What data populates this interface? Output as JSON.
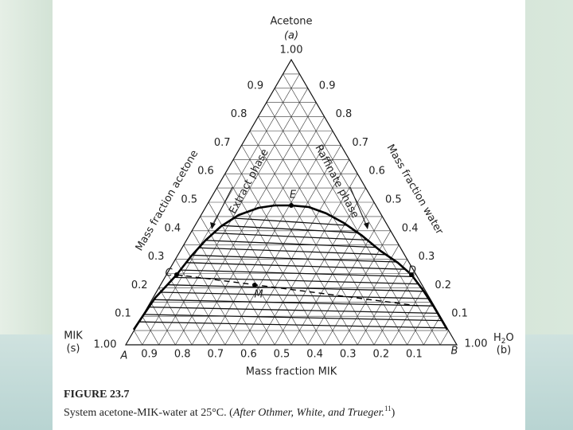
{
  "diagram": {
    "apex": {
      "name": "Acetone",
      "symbol": "(a)",
      "value": "1.00"
    },
    "left_corner": {
      "name": "MIK",
      "symbol": "(s)",
      "value": "1.00",
      "point": "A"
    },
    "right_corner": {
      "name_main": "H",
      "name_sub": "2",
      "name_end": "O",
      "symbol": "(b)",
      "value": "1.00",
      "point": "B"
    },
    "left_ticks": [
      "0.1",
      "0.2",
      "0.3",
      "0.4",
      "0.5",
      "0.6",
      "0.7",
      "0.8",
      "0.9"
    ],
    "right_ticks": [
      "0.9",
      "0.8",
      "0.7",
      "0.6",
      "0.5",
      "0.4",
      "0.3",
      "0.2",
      "0.1"
    ],
    "bottom_ticks": [
      "0.9",
      "0.8",
      "0.7",
      "0.6",
      "0.5",
      "0.4",
      "0.3",
      "0.2",
      "0.1"
    ],
    "left_axis_title": "Mass fraction acetone",
    "right_axis_title": "Mass fraction water",
    "bottom_axis_title": "Mass fraction MIK",
    "extract_label": "Extract phase",
    "raffinate_label": "Raffinate phase",
    "points": {
      "E": "E",
      "C": "C",
      "D": "D",
      "M": "M"
    }
  },
  "caption": {
    "figure": "FIGURE 23.7",
    "text": "System acetone-MIK-water at 25°C. (",
    "credit": "After Othmer, White, and Trueger.",
    "ref": "11",
    "close": ")"
  }
}
